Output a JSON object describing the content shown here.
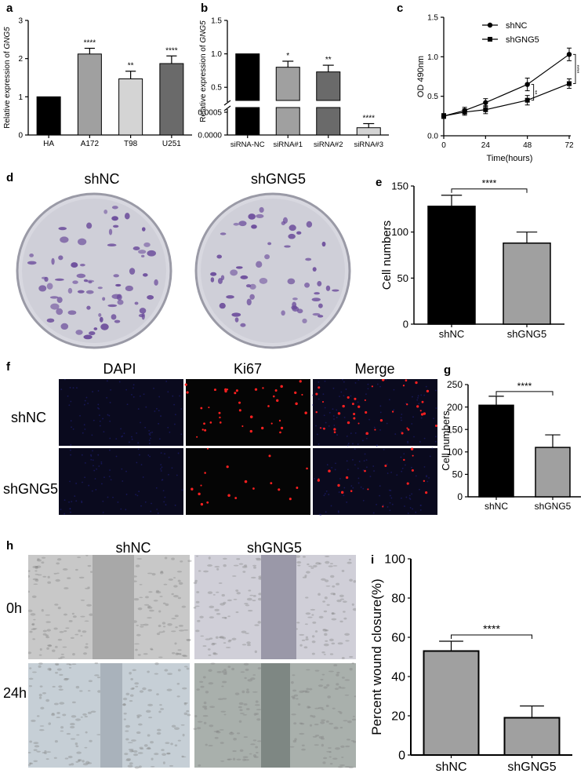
{
  "panel_labels": {
    "a": "a",
    "b": "b",
    "c": "c",
    "d": "d",
    "e": "e",
    "f": "f",
    "g": "g",
    "h": "h",
    "i": "i"
  },
  "colony_labels": {
    "left": "shNC",
    "right": "shGNG5"
  },
  "if_labels": {
    "cols": [
      "DAPI",
      "Ki67",
      "Merge"
    ],
    "rows": [
      "shNC",
      "shGNG5"
    ]
  },
  "wound_labels": {
    "cols": [
      "shNC",
      "shGNG5"
    ],
    "rows": [
      "0h",
      "24h"
    ]
  },
  "colors": {
    "black": "#000000",
    "gray1": "#a0a0a0",
    "gray2": "#d4d4d4",
    "gray3": "#6a6a6a",
    "dapi": "#1d1d6e",
    "ki67": "#ff2020",
    "plate": "#cfcfd8",
    "colony": "#6a4a9a"
  },
  "chart_data": [
    {
      "id": "a",
      "type": "bar",
      "categories": [
        "HA",
        "A172",
        "T98",
        "U251"
      ],
      "values": [
        1.0,
        2.12,
        1.47,
        1.87
      ],
      "errors": [
        0,
        0.15,
        0.2,
        0.2
      ],
      "significance": [
        "",
        "****",
        "**",
        "****"
      ],
      "ylabel_prefix": "Relative expression of ",
      "ylabel_gene": "GNG5",
      "ylim": [
        0,
        3
      ],
      "yticks": [
        "0",
        "1",
        "2",
        "3"
      ]
    },
    {
      "id": "b",
      "type": "bar",
      "categories": [
        "siRNA-NC",
        "siRNA#1",
        "siRNA#2",
        "siRNA#3"
      ],
      "values": [
        1.0,
        0.8,
        0.73,
        0.00016
      ],
      "errors": [
        0,
        0.09,
        0.1,
        9e-05
      ],
      "significance": [
        "",
        "*",
        "**",
        "****"
      ],
      "ylabel_prefix": "Relative expression of ",
      "ylabel_gene": "GNG5",
      "yticks_upper": [
        "0.5",
        "1.0",
        "1.5"
      ],
      "yticks_lower": [
        "0.0000",
        "0.0005"
      ],
      "ylim_upper": [
        0.35,
        1.5
      ],
      "ylim_lower": [
        0,
        0.0005
      ]
    },
    {
      "id": "c",
      "type": "line",
      "x": [
        0,
        12,
        24,
        48,
        72
      ],
      "series": [
        {
          "name": "shNC",
          "values": [
            0.25,
            0.32,
            0.42,
            0.65,
            1.03
          ],
          "errors": [
            0.03,
            0.04,
            0.05,
            0.08,
            0.08
          ]
        },
        {
          "name": "shGNG5",
          "values": [
            0.25,
            0.3,
            0.33,
            0.45,
            0.66
          ],
          "errors": [
            0.03,
            0.04,
            0.05,
            0.06,
            0.06
          ]
        }
      ],
      "significance": [
        {
          "x": 48,
          "text": "**"
        },
        {
          "x": 72,
          "text": "****"
        }
      ],
      "xlabel": "Time(hours)",
      "ylabel": "OD 490nm",
      "xlim": [
        0,
        72
      ],
      "ylim": [
        0,
        1.5
      ],
      "xticks": [
        "0",
        "24",
        "48",
        "72"
      ],
      "yticks": [
        "0.0",
        "0.5",
        "1.0",
        "1.5"
      ]
    },
    {
      "id": "e",
      "type": "bar",
      "categories": [
        "shNC",
        "shGNG5"
      ],
      "values": [
        128,
        88
      ],
      "errors": [
        12,
        12
      ],
      "significance": "****",
      "ylabel": "Cell numbers",
      "ylim": [
        0,
        150
      ],
      "yticks": [
        "0",
        "50",
        "100",
        "150"
      ]
    },
    {
      "id": "g",
      "type": "bar",
      "categories": [
        "shNC",
        "shGNG5"
      ],
      "values": [
        204,
        110
      ],
      "errors": [
        20,
        28
      ],
      "significance": "****",
      "ylabel": "Cell numbers",
      "ylim": [
        0,
        250
      ],
      "yticks": [
        "0",
        "50",
        "100",
        "150",
        "200",
        "250"
      ]
    },
    {
      "id": "i",
      "type": "bar",
      "categories": [
        "shNC",
        "shGNG5"
      ],
      "values": [
        53,
        19
      ],
      "errors": [
        5,
        6
      ],
      "significance": "****",
      "ylabel": "Percent wound closure(%)",
      "ylim": [
        0,
        100
      ],
      "yticks": [
        "0",
        "20",
        "40",
        "60",
        "80",
        "100"
      ]
    }
  ]
}
